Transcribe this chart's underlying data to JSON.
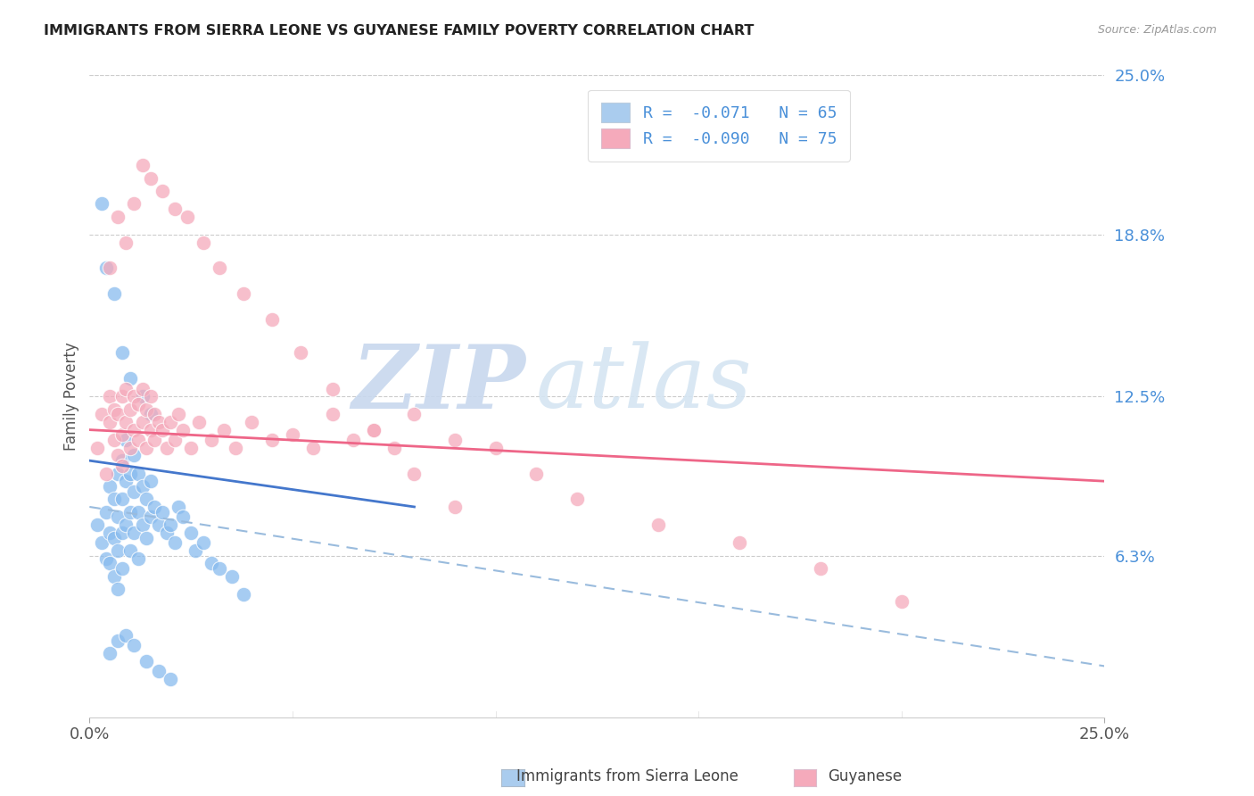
{
  "title": "IMMIGRANTS FROM SIERRA LEONE VS GUYANESE FAMILY POVERTY CORRELATION CHART",
  "source": "Source: ZipAtlas.com",
  "ylabel": "Family Poverty",
  "ytick_labels": [
    "6.3%",
    "12.5%",
    "18.8%",
    "25.0%"
  ],
  "ytick_values": [
    0.063,
    0.125,
    0.188,
    0.25
  ],
  "xlim": [
    0.0,
    0.25
  ],
  "ylim": [
    0.0,
    0.25
  ],
  "legend_r1": "R =  -0.071   N = 65",
  "legend_r2": "R =  -0.090   N = 75",
  "legend_color1": "#aaccee",
  "legend_color2": "#f5aabb",
  "scatter1_color": "#88bbee",
  "scatter2_color": "#f5aabb",
  "trend1_solid_color": "#4477cc",
  "trend2_color": "#ee6688",
  "trend_dash_color": "#99bbdd",
  "watermark_zip": "ZIP",
  "watermark_atlas": "atlas",
  "watermark_color_zip": "#c5d8ee",
  "watermark_color_atlas": "#d5e5f0",
  "background_color": "#ffffff",
  "scatter1_x": [
    0.002,
    0.003,
    0.004,
    0.004,
    0.005,
    0.005,
    0.005,
    0.006,
    0.006,
    0.006,
    0.007,
    0.007,
    0.007,
    0.007,
    0.008,
    0.008,
    0.008,
    0.008,
    0.009,
    0.009,
    0.009,
    0.01,
    0.01,
    0.01,
    0.011,
    0.011,
    0.011,
    0.012,
    0.012,
    0.012,
    0.013,
    0.013,
    0.014,
    0.014,
    0.015,
    0.015,
    0.016,
    0.017,
    0.018,
    0.019,
    0.02,
    0.021,
    0.022,
    0.023,
    0.025,
    0.026,
    0.028,
    0.03,
    0.032,
    0.035,
    0.038,
    0.003,
    0.004,
    0.006,
    0.008,
    0.01,
    0.013,
    0.015,
    0.005,
    0.007,
    0.009,
    0.011,
    0.014,
    0.017,
    0.02
  ],
  "scatter1_y": [
    0.075,
    0.068,
    0.08,
    0.062,
    0.072,
    0.09,
    0.06,
    0.085,
    0.07,
    0.055,
    0.095,
    0.078,
    0.065,
    0.05,
    0.1,
    0.085,
    0.072,
    0.058,
    0.108,
    0.092,
    0.075,
    0.095,
    0.08,
    0.065,
    0.102,
    0.088,
    0.072,
    0.095,
    0.08,
    0.062,
    0.09,
    0.075,
    0.085,
    0.07,
    0.092,
    0.078,
    0.082,
    0.075,
    0.08,
    0.072,
    0.075,
    0.068,
    0.082,
    0.078,
    0.072,
    0.065,
    0.068,
    0.06,
    0.058,
    0.055,
    0.048,
    0.2,
    0.175,
    0.165,
    0.142,
    0.132,
    0.125,
    0.118,
    0.025,
    0.03,
    0.032,
    0.028,
    0.022,
    0.018,
    0.015
  ],
  "scatter2_x": [
    0.002,
    0.003,
    0.004,
    0.005,
    0.005,
    0.006,
    0.006,
    0.007,
    0.007,
    0.008,
    0.008,
    0.008,
    0.009,
    0.009,
    0.01,
    0.01,
    0.011,
    0.011,
    0.012,
    0.012,
    0.013,
    0.013,
    0.014,
    0.014,
    0.015,
    0.015,
    0.016,
    0.016,
    0.017,
    0.018,
    0.019,
    0.02,
    0.021,
    0.022,
    0.023,
    0.025,
    0.027,
    0.03,
    0.033,
    0.036,
    0.04,
    0.045,
    0.05,
    0.055,
    0.06,
    0.065,
    0.07,
    0.075,
    0.08,
    0.09,
    0.1,
    0.11,
    0.12,
    0.14,
    0.16,
    0.18,
    0.2,
    0.005,
    0.007,
    0.009,
    0.011,
    0.013,
    0.015,
    0.018,
    0.021,
    0.024,
    0.028,
    0.032,
    0.038,
    0.045,
    0.052,
    0.06,
    0.07,
    0.08,
    0.09
  ],
  "scatter2_y": [
    0.105,
    0.118,
    0.095,
    0.115,
    0.125,
    0.108,
    0.12,
    0.102,
    0.118,
    0.11,
    0.125,
    0.098,
    0.115,
    0.128,
    0.105,
    0.12,
    0.112,
    0.125,
    0.108,
    0.122,
    0.115,
    0.128,
    0.105,
    0.12,
    0.112,
    0.125,
    0.108,
    0.118,
    0.115,
    0.112,
    0.105,
    0.115,
    0.108,
    0.118,
    0.112,
    0.105,
    0.115,
    0.108,
    0.112,
    0.105,
    0.115,
    0.108,
    0.11,
    0.105,
    0.118,
    0.108,
    0.112,
    0.105,
    0.118,
    0.108,
    0.105,
    0.095,
    0.085,
    0.075,
    0.068,
    0.058,
    0.045,
    0.175,
    0.195,
    0.185,
    0.2,
    0.215,
    0.21,
    0.205,
    0.198,
    0.195,
    0.185,
    0.175,
    0.165,
    0.155,
    0.142,
    0.128,
    0.112,
    0.095,
    0.082
  ],
  "trend1_x_start": 0.0,
  "trend1_x_end": 0.08,
  "trend1_y_start": 0.1,
  "trend1_y_end": 0.082,
  "trend_dash_x_start": 0.0,
  "trend_dash_x_end": 0.25,
  "trend_dash_y_start": 0.082,
  "trend_dash_y_end": 0.02,
  "trend2_x_start": 0.0,
  "trend2_x_end": 0.25,
  "trend2_y_start": 0.112,
  "trend2_y_end": 0.092,
  "bottom_legend_label1": "Immigrants from Sierra Leone",
  "bottom_legend_label2": "Guyanese"
}
